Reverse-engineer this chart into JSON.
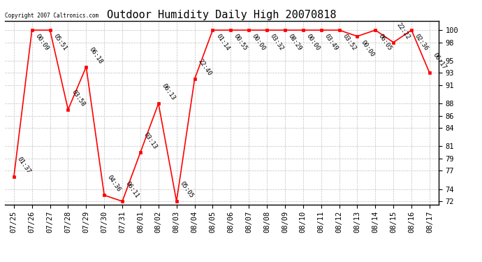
{
  "title": "Outdoor Humidity Daily High 20070818",
  "copyright": "Copyright 2007 Caltronics.com",
  "line_color": "#ff0000",
  "bg_color": "#ffffff",
  "grid_color": "#c0c0c0",
  "marker": "s",
  "marker_size": 2.5,
  "x_labels": [
    "07/25",
    "07/26",
    "07/27",
    "07/28",
    "07/29",
    "07/30",
    "07/31",
    "08/01",
    "08/02",
    "08/03",
    "08/04",
    "08/05",
    "08/06",
    "08/07",
    "08/08",
    "08/09",
    "08/10",
    "08/11",
    "08/12",
    "08/13",
    "08/14",
    "08/15",
    "08/16",
    "08/17"
  ],
  "y_values": [
    76,
    100,
    100,
    87,
    94,
    73,
    72,
    80,
    88,
    72,
    92,
    100,
    100,
    100,
    100,
    100,
    100,
    100,
    100,
    99,
    100,
    98,
    100,
    93
  ],
  "time_labels": [
    "01:37",
    "00:09",
    "05:51",
    "03:58",
    "06:18",
    "04:36",
    "06:11",
    "03:13",
    "06:13",
    "05:05",
    "22:40",
    "01:14",
    "00:55",
    "00:00",
    "03:32",
    "08:29",
    "00:00",
    "03:49",
    "03:52",
    "00:00",
    "06:05",
    "22:22",
    "02:36",
    "06:17"
  ],
  "ylim": [
    71.5,
    101.5
  ],
  "yticks": [
    72,
    74,
    77,
    79,
    81,
    84,
    86,
    88,
    91,
    93,
    95,
    98,
    100
  ],
  "title_fontsize": 11,
  "label_fontsize": 6.5,
  "tick_fontsize": 7.5,
  "copyright_fontsize": 5.5,
  "annotation_rotation": -55
}
